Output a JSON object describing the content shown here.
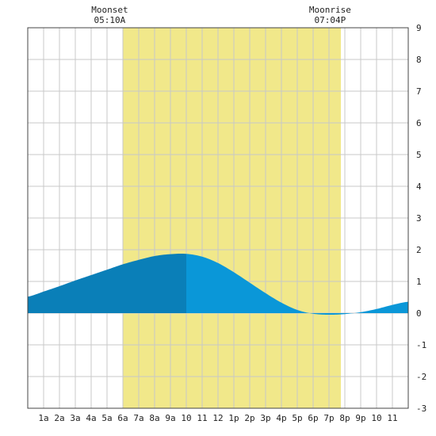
{
  "chart_data": {
    "type": "area",
    "title": "",
    "xlabel": "",
    "ylabel": "",
    "x_tick_labels": [
      "1a",
      "2a",
      "3a",
      "4a",
      "5a",
      "6a",
      "7a",
      "8a",
      "9a",
      "10",
      "11",
      "12",
      "1p",
      "2p",
      "3p",
      "4p",
      "5p",
      "6p",
      "7p",
      "8p",
      "9p",
      "10",
      "11"
    ],
    "xlim": [
      0,
      24
    ],
    "ylim": [
      -3,
      9
    ],
    "y_ticks": [
      -3,
      -2,
      -1,
      0,
      1,
      2,
      3,
      4,
      5,
      6,
      7,
      8,
      9
    ],
    "y_axis_side": "right",
    "grid": true,
    "daylight_band": {
      "start_hour": 6.0,
      "end_hour": 19.75,
      "color": "#f1e88a"
    },
    "moon_events": [
      {
        "label": "Moonset",
        "time": "05:10A",
        "hour": 5.17
      },
      {
        "label": "Moonrise",
        "time": "07:04P",
        "hour": 19.07
      }
    ],
    "series": [
      {
        "x": [
          0,
          1,
          2,
          3,
          4,
          5,
          6,
          7,
          8,
          9,
          10,
          11,
          12,
          13,
          14,
          15,
          16,
          17,
          18,
          19,
          20,
          21,
          22,
          23,
          24
        ],
        "values": [
          0.52,
          0.68,
          0.85,
          1.03,
          1.2,
          1.37,
          1.54,
          1.68,
          1.8,
          1.86,
          1.87,
          1.78,
          1.58,
          1.29,
          0.96,
          0.63,
          0.33,
          0.1,
          -0.02,
          -0.05,
          -0.03,
          0.03,
          0.13,
          0.26,
          0.36
        ]
      }
    ],
    "segments": [
      {
        "from_hour": 0,
        "to_hour": 10,
        "color": "#0a7fb8"
      },
      {
        "from_hour": 10,
        "to_hour": 24,
        "color": "#0a97d8"
      }
    ],
    "grid_color": "#c8c8c8",
    "border_color": "#444444"
  }
}
